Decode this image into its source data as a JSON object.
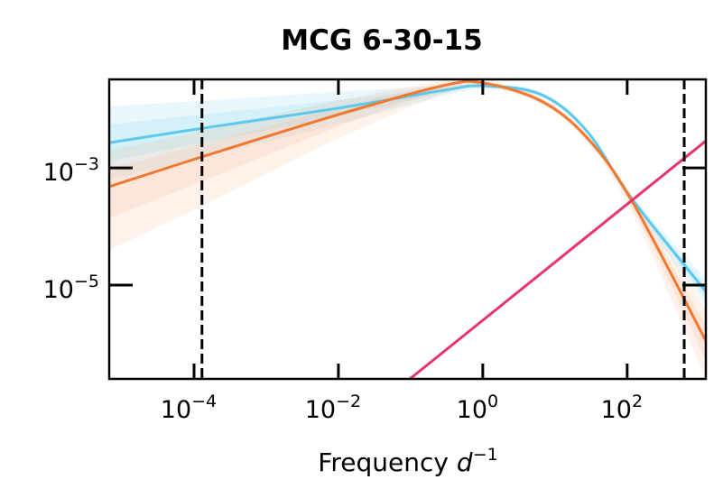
{
  "chart_data": {
    "type": "line",
    "title": "MCG 6-30-15",
    "xlabel": "Frequency",
    "xlabel_unit_base": "d",
    "xlabel_unit_exp": "−1",
    "ylabel": "",
    "xscale": "log",
    "yscale": "log",
    "xlim_log10": [
      -5.175,
      3.09
    ],
    "ylim_log10": [
      -6.6,
      -1.49
    ],
    "grid": false,
    "legend": "none",
    "x_ticks": [
      {
        "log10": -4,
        "base": "10",
        "exp": "−4"
      },
      {
        "log10": -2,
        "base": "10",
        "exp": "−2"
      },
      {
        "log10": 0,
        "base": "10",
        "exp": "0"
      },
      {
        "log10": 2,
        "base": "10",
        "exp": "2"
      }
    ],
    "y_ticks": [
      {
        "log10": -3,
        "base": "10",
        "exp": "−3"
      },
      {
        "log10": -5,
        "base": "10",
        "exp": "−5"
      }
    ],
    "vlines_log10": [
      -3.89,
      2.79
    ],
    "series": [
      {
        "name": "model-blue",
        "color": "#5bc8ec",
        "band_color": "#5bc8ec",
        "x_log10": [
          -5.175,
          -3.81,
          -2.0,
          -0.56,
          0.0,
          0.81,
          1.44,
          2.06,
          3.09
        ],
        "y_log10": [
          -2.57,
          -2.31,
          -1.98,
          -1.68,
          -1.6,
          -1.75,
          -2.37,
          -3.52,
          -5.11
        ],
        "band_upper_log10": [
          -1.95,
          -1.85,
          -1.7,
          -1.6,
          -1.55,
          -1.7,
          -2.32,
          -3.45,
          -4.9
        ],
        "band_lower_log10": [
          -3.2,
          -2.8,
          -2.25,
          -1.78,
          -1.66,
          -1.8,
          -2.42,
          -3.6,
          -5.35
        ]
      },
      {
        "name": "model-orange",
        "color": "#f07830",
        "band_color": "#f5a070",
        "x_log10": [
          -5.175,
          -3.81,
          -2.0,
          -0.56,
          0.0,
          0.81,
          1.44,
          2.06,
          3.09
        ],
        "y_log10": [
          -3.32,
          -2.78,
          -2.09,
          -1.6,
          -1.55,
          -1.86,
          -2.48,
          -3.55,
          -5.95
        ],
        "band_upper_log10": [
          -2.7,
          -2.35,
          -1.85,
          -1.52,
          -1.5,
          -1.8,
          -2.42,
          -3.45,
          -5.4
        ],
        "band_lower_log10": [
          -4.4,
          -3.6,
          -2.5,
          -1.75,
          -1.62,
          -1.92,
          -2.56,
          -3.75,
          -6.6
        ]
      },
      {
        "name": "noise-line",
        "color": "#e8336e",
        "x_log10": [
          -1.01,
          3.09
        ],
        "y_log10": [
          -6.6,
          -2.54
        ]
      }
    ]
  }
}
